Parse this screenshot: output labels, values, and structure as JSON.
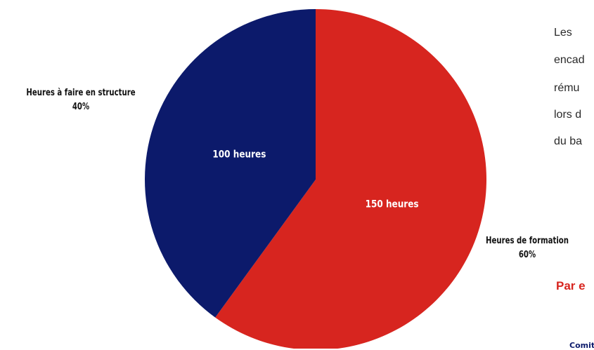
{
  "chart_data": {
    "type": "pie",
    "slices": [
      {
        "name": "Heures de formation",
        "value": 150,
        "percent_label": "60%",
        "inner_label": "150 heures",
        "color": "#d7251f"
      },
      {
        "name": "Heures à faire en structure",
        "value": 100,
        "percent_label": "40%",
        "inner_label": "100 heures",
        "color": "#0c1a6b"
      }
    ],
    "title": "",
    "legend": "none",
    "start_angle": "top, clockwise"
  },
  "side_text": {
    "lines": [
      "Les",
      "encad",
      "rému",
      "lors d",
      "du ba"
    ],
    "highlight": "Par e",
    "highlight_color": "#d7251f",
    "footer_fragment": "Comit",
    "footer_color": "#0c1a6b"
  }
}
